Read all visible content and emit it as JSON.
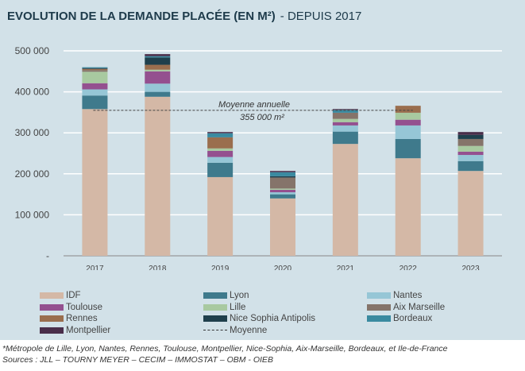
{
  "title": {
    "main": "EVOLUTION DE LA DEMANDE PLACÉE (EN M²)",
    "sub": "- DEPUIS 2017"
  },
  "chart_data": {
    "type": "bar",
    "stacked": true,
    "categories": [
      "2017",
      "2018",
      "2019",
      "2020",
      "2021",
      "2022",
      "2023"
    ],
    "ylim": [
      0,
      500000
    ],
    "yticks": [
      "-",
      "100 000",
      "200 000",
      "300 000",
      "400 000",
      "500 000"
    ],
    "grid": true,
    "legend_position": "bottom",
    "series": [
      {
        "name": "IDF",
        "color": "#d4b8a6",
        "values": [
          358000,
          388000,
          192000,
          140000,
          273000,
          238000,
          207000
        ]
      },
      {
        "name": "Lyon",
        "color": "#3f7a8c",
        "values": [
          33000,
          12000,
          35000,
          10000,
          30000,
          47000,
          24000
        ]
      },
      {
        "name": "Nantes",
        "color": "#96c6d6",
        "values": [
          15000,
          20000,
          14000,
          5000,
          15000,
          33000,
          15000
        ]
      },
      {
        "name": "Toulouse",
        "color": "#94508f",
        "values": [
          15000,
          30000,
          15000,
          6000,
          8000,
          14000,
          8000
        ]
      },
      {
        "name": "Lille",
        "color": "#a8c9a0",
        "values": [
          28000,
          4000,
          6000,
          3000,
          8000,
          17000,
          14000
        ]
      },
      {
        "name": "Aix Marseille",
        "color": "#85746a",
        "values": [
          4000,
          0,
          0,
          27000,
          15000,
          0,
          17000
        ]
      },
      {
        "name": "Rennes",
        "color": "#9a6e4e",
        "values": [
          3000,
          12000,
          27000,
          0,
          0,
          17000,
          0
        ]
      },
      {
        "name": "Nice Sophia Antipolis",
        "color": "#1f3f4c",
        "values": [
          2000,
          18000,
          0,
          3000,
          0,
          0,
          10000
        ]
      },
      {
        "name": "Bordeaux",
        "color": "#3a8aa0",
        "values": [
          2000,
          3000,
          10000,
          10000,
          7000,
          0,
          0
        ]
      },
      {
        "name": "Montpellier",
        "color": "#4a2e4a",
        "values": [
          0,
          5000,
          3000,
          3000,
          2000,
          0,
          7000
        ]
      }
    ],
    "average": {
      "name": "Moyenne",
      "value": 355000,
      "label_line1": "Moyenne annuelle",
      "label_line2": "355 000 m²"
    }
  },
  "footnote": "*Métropole de Lille, Lyon, Nantes, Rennes, Toulouse, Montpellier, Nice-Sophia, Aix-Marseille, Bordeaux, et Ile-de-France",
  "sources": "Sources : JLL – TOURNY MEYER – CECIM – IMMOSTAT – OBM - OIEB"
}
